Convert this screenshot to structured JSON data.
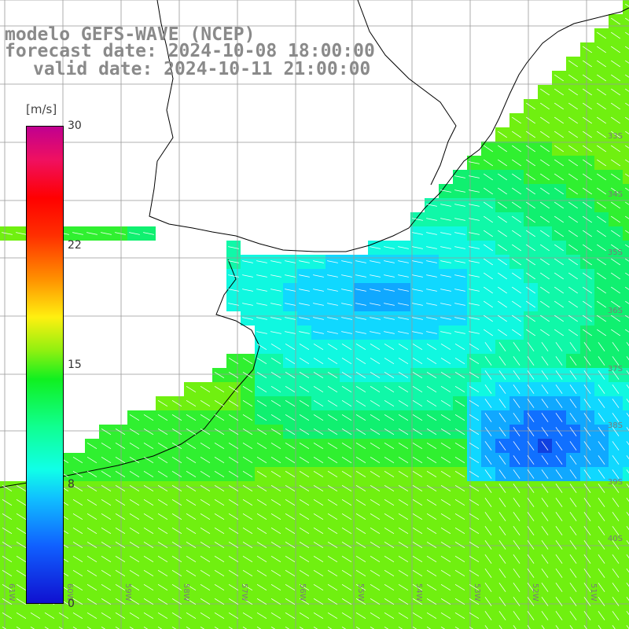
{
  "title": {
    "line1": "modelo GEFS-WAVE (NCEP)",
    "line2": "forecast date: 2024-10-08 18:00:00",
    "line3": "valid date: 2024-10-11 21:00:00"
  },
  "colorbar": {
    "unit": "[m/s]",
    "ticks": [
      {
        "value": 30,
        "label": "30"
      },
      {
        "value": 22,
        "label": "22"
      },
      {
        "value": 15,
        "label": "15"
      },
      {
        "value": 8,
        "label": "8"
      },
      {
        "value": 0,
        "label": "0"
      }
    ],
    "range": [
      0,
      30
    ],
    "colors": [
      "#1010d0",
      "#1060ff",
      "#10c0ff",
      "#10ffe8",
      "#10ff90",
      "#10f020",
      "#90f010",
      "#fff010",
      "#ff9000",
      "#ff3000",
      "#ff0000",
      "#f01060",
      "#c00090"
    ]
  },
  "map": {
    "latitude_labels": [
      "33S",
      "34S",
      "35S",
      "36S",
      "37S",
      "38S",
      "39S",
      "40S"
    ],
    "longitude_labels": [
      "61W",
      "60W",
      "59W",
      "58W",
      "57W",
      "56W",
      "55W",
      "54W",
      "53W",
      "52W",
      "51W"
    ],
    "colors": {
      "land": "#ffffff",
      "grid": "#999999",
      "coast": "#000000",
      "arrows": "#ffffff"
    }
  }
}
